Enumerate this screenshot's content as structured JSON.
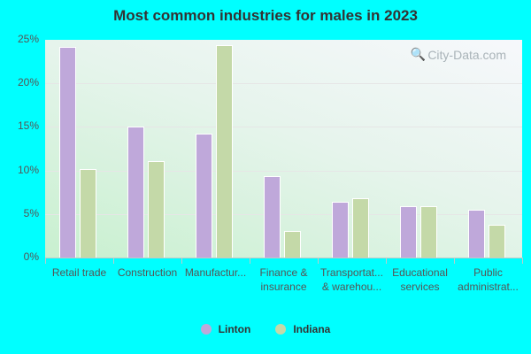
{
  "chart_data": {
    "type": "bar",
    "title": "Most common industries for males in 2023",
    "xlabel": "",
    "ylabel": "",
    "ylim": [
      0,
      25
    ],
    "yticks": [
      "0%",
      "5%",
      "10%",
      "15%",
      "20%",
      "25%"
    ],
    "categories": [
      [
        "Retail trade"
      ],
      [
        "Construction"
      ],
      [
        "Manufactur..."
      ],
      [
        "Finance &",
        "insurance"
      ],
      [
        "Transportat...",
        "& warehou..."
      ],
      [
        "Educational",
        "services"
      ],
      [
        "Public",
        "administrat..."
      ]
    ],
    "series": [
      {
        "name": "Linton",
        "color": "#bfa8da",
        "values": [
          24.2,
          15.0,
          14.2,
          9.4,
          6.4,
          5.9,
          5.5
        ]
      },
      {
        "name": "Indiana",
        "color": "#c4d9a8",
        "values": [
          10.2,
          11.1,
          24.4,
          3.0,
          6.8,
          5.9,
          3.8
        ]
      }
    ],
    "grid": true,
    "legend_position": "bottom"
  },
  "watermark": "City-Data.com"
}
